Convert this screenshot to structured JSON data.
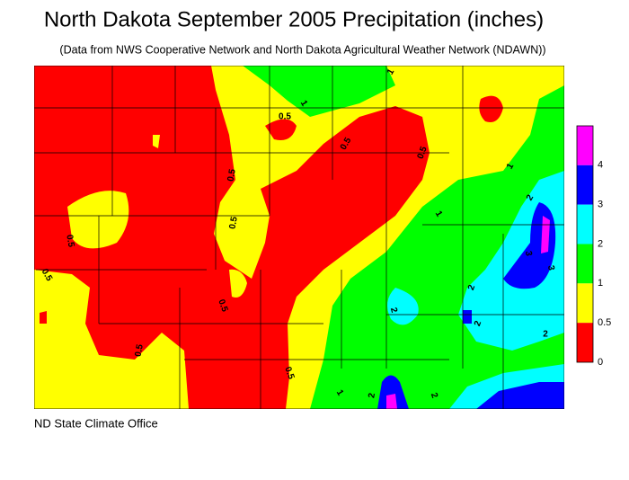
{
  "header": {
    "title": "North Dakota September 2005 Precipitation (inches)",
    "subtitle": "(Data from NWS Cooperative Network and North Dakota Agricultural Weather Network (NDAWN))"
  },
  "legend": {
    "items": [
      {
        "label": "4",
        "color": "#ff00ff"
      },
      {
        "label": "3",
        "color": "#0000ff"
      },
      {
        "label": "2",
        "color": "#00ffff"
      },
      {
        "label": "1",
        "color": "#00ff00"
      },
      {
        "label": "0.5",
        "color": "#ffff00"
      },
      {
        "label": "0",
        "color": "#ff0000"
      }
    ]
  },
  "map": {
    "contour_labels": [
      "0.5",
      "0.5",
      "0.5",
      "0.5",
      "0.5",
      "0.5",
      "0.5",
      "0.5",
      "0.5",
      "0.5",
      "1",
      "1",
      "1",
      "1",
      "2",
      "2",
      "2",
      "2",
      "2",
      "3",
      "3",
      "1",
      "2",
      "2"
    ]
  },
  "footer": {
    "credit": "ND State Climate Office"
  }
}
